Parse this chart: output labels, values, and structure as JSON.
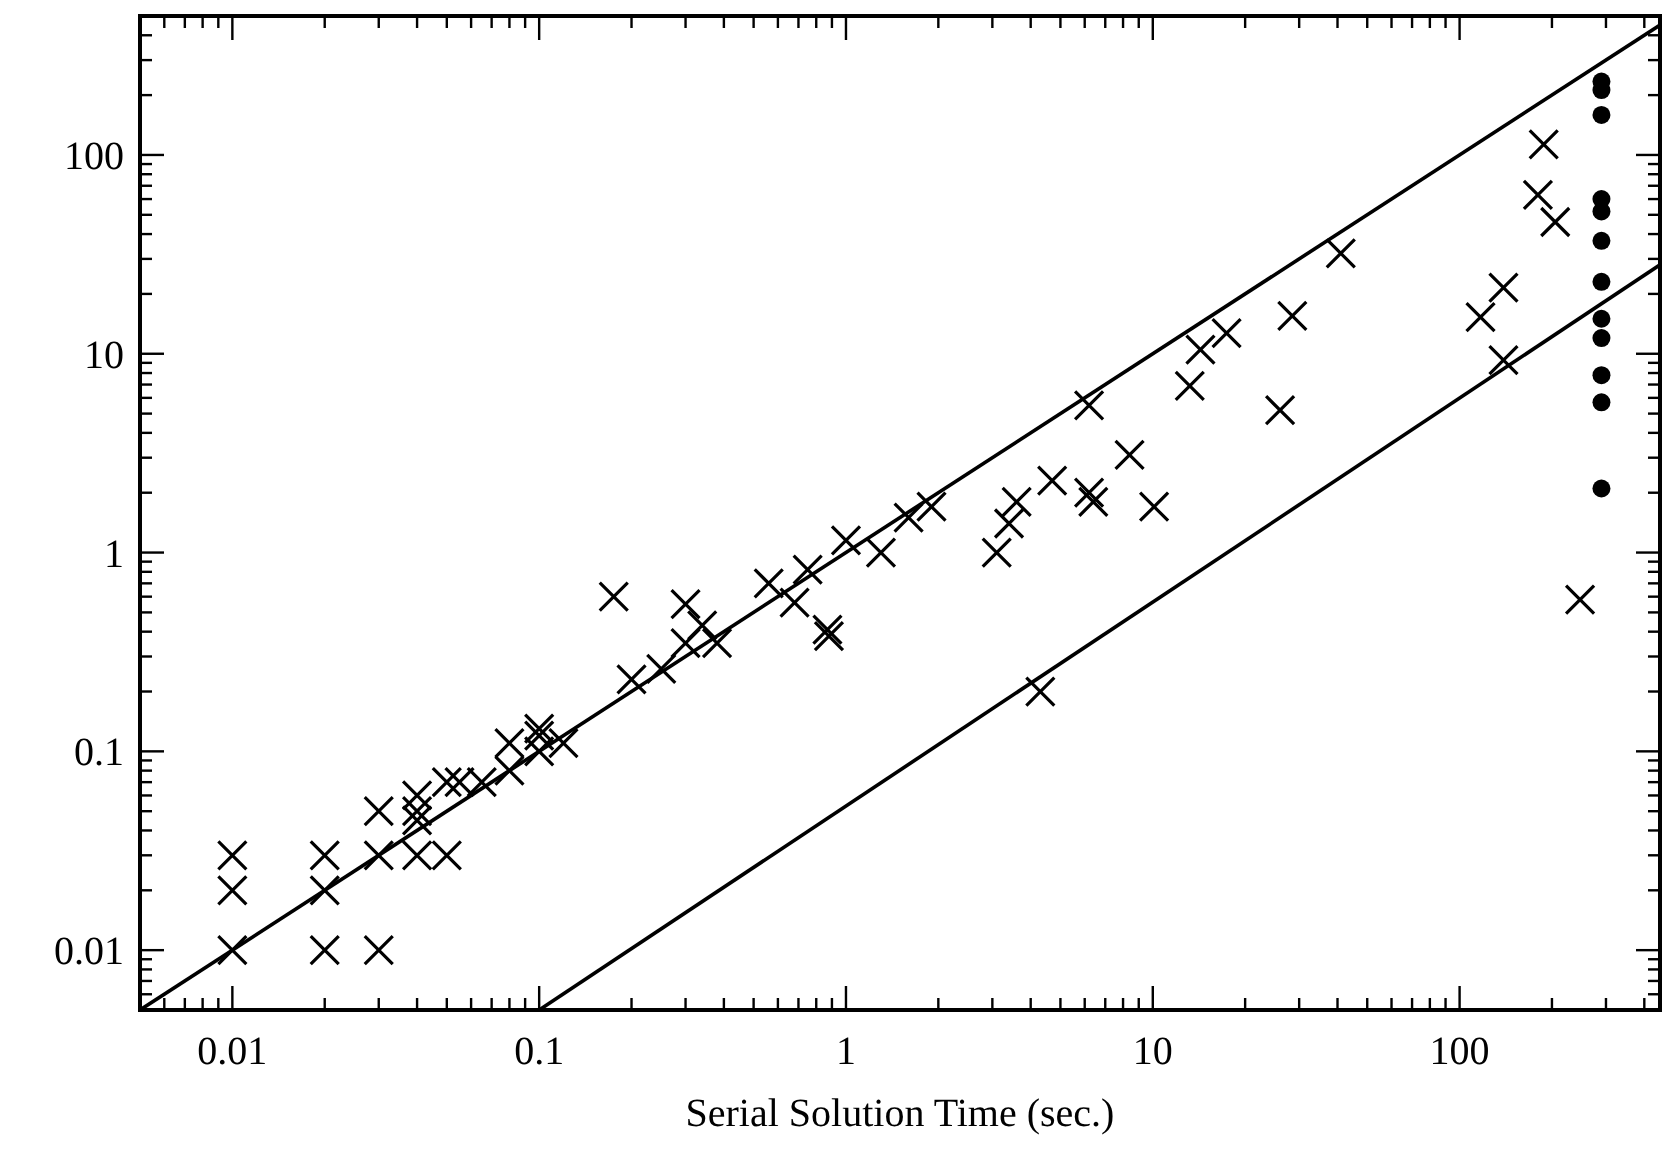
{
  "chart_data": {
    "type": "scatter",
    "xlabel": "Serial Solution Time (sec.)",
    "log": "xy",
    "grid": false,
    "xlim": [
      0.005,
      450
    ],
    "ylim": [
      0.005,
      500
    ],
    "xticks": [
      {
        "value": 0.006,
        "label": null
      },
      {
        "value": 0.007,
        "label": null
      },
      {
        "value": 0.008,
        "label": null
      },
      {
        "value": 0.009,
        "label": null
      },
      0.01,
      {
        "value": 0.02,
        "label": null
      },
      {
        "value": 0.03,
        "label": null
      },
      {
        "value": 0.04,
        "label": null
      },
      {
        "value": 0.05,
        "label": null
      },
      {
        "value": 0.06,
        "label": null
      },
      {
        "value": 0.07,
        "label": null
      },
      {
        "value": 0.08,
        "label": null
      },
      {
        "value": 0.09,
        "label": null
      },
      0.1,
      {
        "value": 0.2,
        "label": null
      },
      {
        "value": 0.3,
        "label": null
      },
      {
        "value": 0.4,
        "label": null
      },
      {
        "value": 0.5,
        "label": null
      },
      {
        "value": 0.6,
        "label": null
      },
      {
        "value": 0.7,
        "label": null
      },
      {
        "value": 0.8,
        "label": null
      },
      {
        "value": 0.9,
        "label": null
      },
      1,
      {
        "value": 2,
        "label": null
      },
      {
        "value": 3,
        "label": null
      },
      {
        "value": 4,
        "label": null
      },
      {
        "value": 5,
        "label": null
      },
      {
        "value": 6,
        "label": null
      },
      {
        "value": 7,
        "label": null
      },
      {
        "value": 8,
        "label": null
      },
      {
        "value": 9,
        "label": null
      },
      10,
      {
        "value": 20,
        "label": null
      },
      {
        "value": 30,
        "label": null
      },
      {
        "value": 40,
        "label": null
      },
      {
        "value": 50,
        "label": null
      },
      {
        "value": 60,
        "label": null
      },
      {
        "value": 70,
        "label": null
      },
      {
        "value": 80,
        "label": null
      },
      {
        "value": 90,
        "label": null
      },
      100,
      {
        "value": 200,
        "label": null
      },
      {
        "value": 300,
        "label": null
      },
      {
        "value": 400,
        "label": null
      }
    ],
    "yticks": [
      {
        "value": 0.006,
        "label": null
      },
      {
        "value": 0.007,
        "label": null
      },
      {
        "value": 0.008,
        "label": null
      },
      {
        "value": 0.009,
        "label": null
      },
      0.01,
      {
        "value": 0.02,
        "label": null
      },
      {
        "value": 0.03,
        "label": null
      },
      {
        "value": 0.04,
        "label": null
      },
      {
        "value": 0.05,
        "label": null
      },
      {
        "value": 0.06,
        "label": null
      },
      {
        "value": 0.07,
        "label": null
      },
      {
        "value": 0.08,
        "label": null
      },
      {
        "value": 0.09,
        "label": null
      },
      0.1,
      {
        "value": 0.2,
        "label": null
      },
      {
        "value": 0.3,
        "label": null
      },
      {
        "value": 0.4,
        "label": null
      },
      {
        "value": 0.5,
        "label": null
      },
      {
        "value": 0.6,
        "label": null
      },
      {
        "value": 0.7,
        "label": null
      },
      {
        "value": 0.8,
        "label": null
      },
      {
        "value": 0.9,
        "label": null
      },
      1,
      {
        "value": 2,
        "label": null
      },
      {
        "value": 3,
        "label": null
      },
      {
        "value": 4,
        "label": null
      },
      {
        "value": 5,
        "label": null
      },
      {
        "value": 6,
        "label": null
      },
      {
        "value": 7,
        "label": null
      },
      {
        "value": 8,
        "label": null
      },
      {
        "value": 9,
        "label": null
      },
      10,
      {
        "value": 20,
        "label": null
      },
      {
        "value": 30,
        "label": null
      },
      {
        "value": 40,
        "label": null
      },
      {
        "value": 50,
        "label": null
      },
      {
        "value": 60,
        "label": null
      },
      {
        "value": 70,
        "label": null
      },
      {
        "value": 80,
        "label": null
      },
      {
        "value": 90,
        "label": null
      },
      100,
      {
        "value": 200,
        "label": null
      },
      {
        "value": 300,
        "label": null
      },
      {
        "value": 400,
        "label": null
      }
    ],
    "series": [
      {
        "marker": "cross",
        "color": "#000000",
        "x": [
          0.01,
          0.01,
          0.01,
          0.02,
          0.02,
          0.02,
          0.03,
          0.03,
          0.03,
          0.04,
          0.04,
          0.04,
          0.04,
          0.05,
          0.05,
          0.055,
          0.065,
          0.08,
          0.08,
          0.1,
          0.1,
          0.1,
          0.12,
          0.175,
          0.2,
          0.25,
          0.3,
          0.3,
          0.34,
          0.38,
          0.56,
          0.68,
          0.75,
          0.87,
          0.88,
          1.0,
          1.3,
          1.6,
          1.9,
          3.1,
          3.4,
          3.6,
          4.3,
          4.7,
          6.2,
          6.2,
          6.4,
          8.4,
          10.1,
          13.2,
          14.3,
          17.4,
          26,
          28.5,
          41,
          117,
          139,
          139,
          188,
          180,
          205,
          247
        ],
        "values": [
          0.03,
          0.02,
          0.01,
          0.03,
          0.02,
          0.01,
          0.01,
          0.05,
          0.03,
          0.06,
          0.05,
          0.03,
          0.045,
          0.03,
          0.07,
          0.07,
          0.07,
          0.08,
          0.11,
          0.13,
          0.12,
          0.1,
          0.11,
          0.6,
          0.23,
          0.26,
          0.55,
          0.35,
          0.43,
          0.35,
          0.7,
          0.56,
          0.82,
          0.41,
          0.38,
          1.15,
          1.0,
          1.5,
          1.7,
          1.0,
          1.4,
          1.8,
          0.2,
          2.3,
          5.5,
          2.0,
          1.8,
          3.1,
          1.7,
          6.9,
          10.5,
          12.7,
          5.2,
          15.5,
          32,
          15.3,
          21.5,
          9.3,
          113,
          63,
          46,
          0.58
        ]
      },
      {
        "marker": "circle",
        "color": "#000000",
        "x": [
          290,
          290,
          290,
          290,
          290,
          290,
          290,
          290,
          290,
          290,
          290,
          290
        ],
        "values": [
          234,
          212,
          159,
          60,
          52,
          37,
          23,
          15,
          12,
          7.8,
          5.7,
          2.1
        ]
      },
      {
        "type": "line",
        "color": "#000000",
        "x": [
          0.005,
          450
        ],
        "values": [
          0.005,
          450
        ]
      },
      {
        "type": "line",
        "color": "#000000",
        "x": [
          0.1,
          450
        ],
        "values": [
          0.005,
          28
        ]
      }
    ]
  }
}
